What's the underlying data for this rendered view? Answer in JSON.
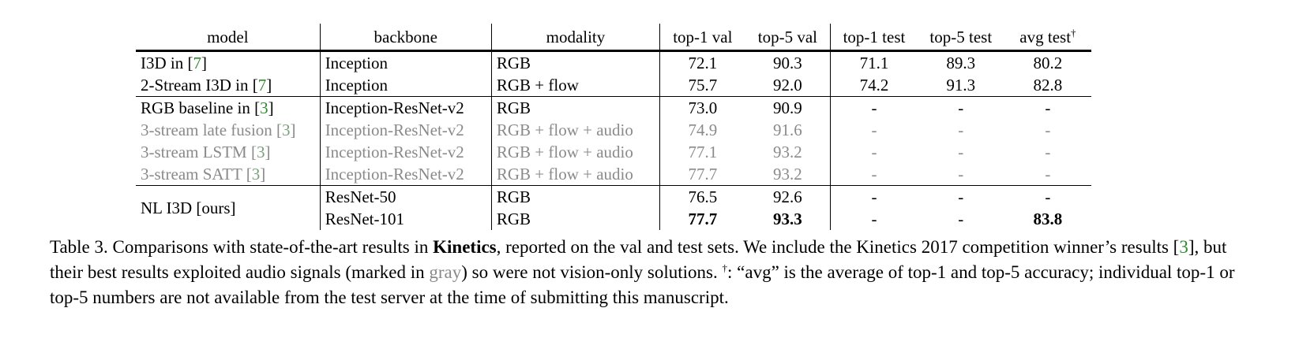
{
  "table": {
    "headers": {
      "model": "model",
      "backbone": "backbone",
      "modality": "modality",
      "top1_val": "top-1 val",
      "top5_val": "top-5 val",
      "top1_test": "top-1 test",
      "top5_test": "top-5 test",
      "avg_test": "avg test",
      "avg_test_mark": "†"
    },
    "rows": [
      {
        "model": "I3D in [",
        "cite": "7",
        "close": "]",
        "backbone": "Inception",
        "modality": "RGB",
        "top1_val": "72.1",
        "top5_val": "90.3",
        "top1_test": "71.1",
        "top5_test": "89.3",
        "avg_test": "80.2"
      },
      {
        "model": "2-Stream I3D in [",
        "cite": "7",
        "close": "]",
        "backbone": "Inception",
        "modality": "RGB + flow",
        "top1_val": "75.7",
        "top5_val": "92.0",
        "top1_test": "74.2",
        "top5_test": "91.3",
        "avg_test": "82.8"
      },
      {
        "model": "RGB baseline in [",
        "cite": "3",
        "close": "]",
        "backbone": "Inception-ResNet-v2",
        "modality": "RGB",
        "top1_val": "73.0",
        "top5_val": "90.9",
        "top1_test": "-",
        "top5_test": "-",
        "avg_test": "-"
      },
      {
        "model": "3-stream late fusion [",
        "cite": "3",
        "close": "]",
        "backbone": "Inception-ResNet-v2",
        "modality": "RGB + flow + audio",
        "top1_val": "74.9",
        "top5_val": "91.6",
        "top1_test": "-",
        "top5_test": "-",
        "avg_test": "-"
      },
      {
        "model": "3-stream LSTM [",
        "cite": "3",
        "close": "]",
        "backbone": "Inception-ResNet-v2",
        "modality": "RGB + flow + audio",
        "top1_val": "77.1",
        "top5_val": "93.2",
        "top1_test": "-",
        "top5_test": "-",
        "avg_test": "-"
      },
      {
        "model": "3-stream SATT [",
        "cite": "3",
        "close": "]",
        "backbone": "Inception-ResNet-v2",
        "modality": "RGB + flow + audio",
        "top1_val": "77.7",
        "top5_val": "93.2",
        "top1_test": "-",
        "top5_test": "-",
        "avg_test": "-"
      },
      {
        "model": "NL I3D [ours]",
        "backbone": "ResNet-50",
        "modality": "RGB",
        "top1_val": "76.5",
        "top5_val": "92.6",
        "top1_test": "-",
        "top5_test": "-",
        "avg_test": "-"
      },
      {
        "backbone": "ResNet-101",
        "modality": "RGB",
        "top1_val": "77.7",
        "top5_val": "93.3",
        "top1_test": "-",
        "top5_test": "-",
        "avg_test": "83.8"
      }
    ]
  },
  "caption": {
    "part1": "Table 3. Comparisons with state-of-the-art results in ",
    "bold": "Kinetics",
    "part2": ", reported on the val and test sets. We include the Kinetics 2017 competition winner’s results [",
    "cite": "3",
    "part3": "], but their best results exploited audio signals (marked in ",
    "gray_word": "gray",
    "part4": ") so were not vision-only solutions. ",
    "dagger": "†",
    "part5": ": “avg” is the average of top-1 and top-5 accuracy; individual top-1 or top-5 numbers are not available from the test server at the time of submitting this manuscript."
  }
}
